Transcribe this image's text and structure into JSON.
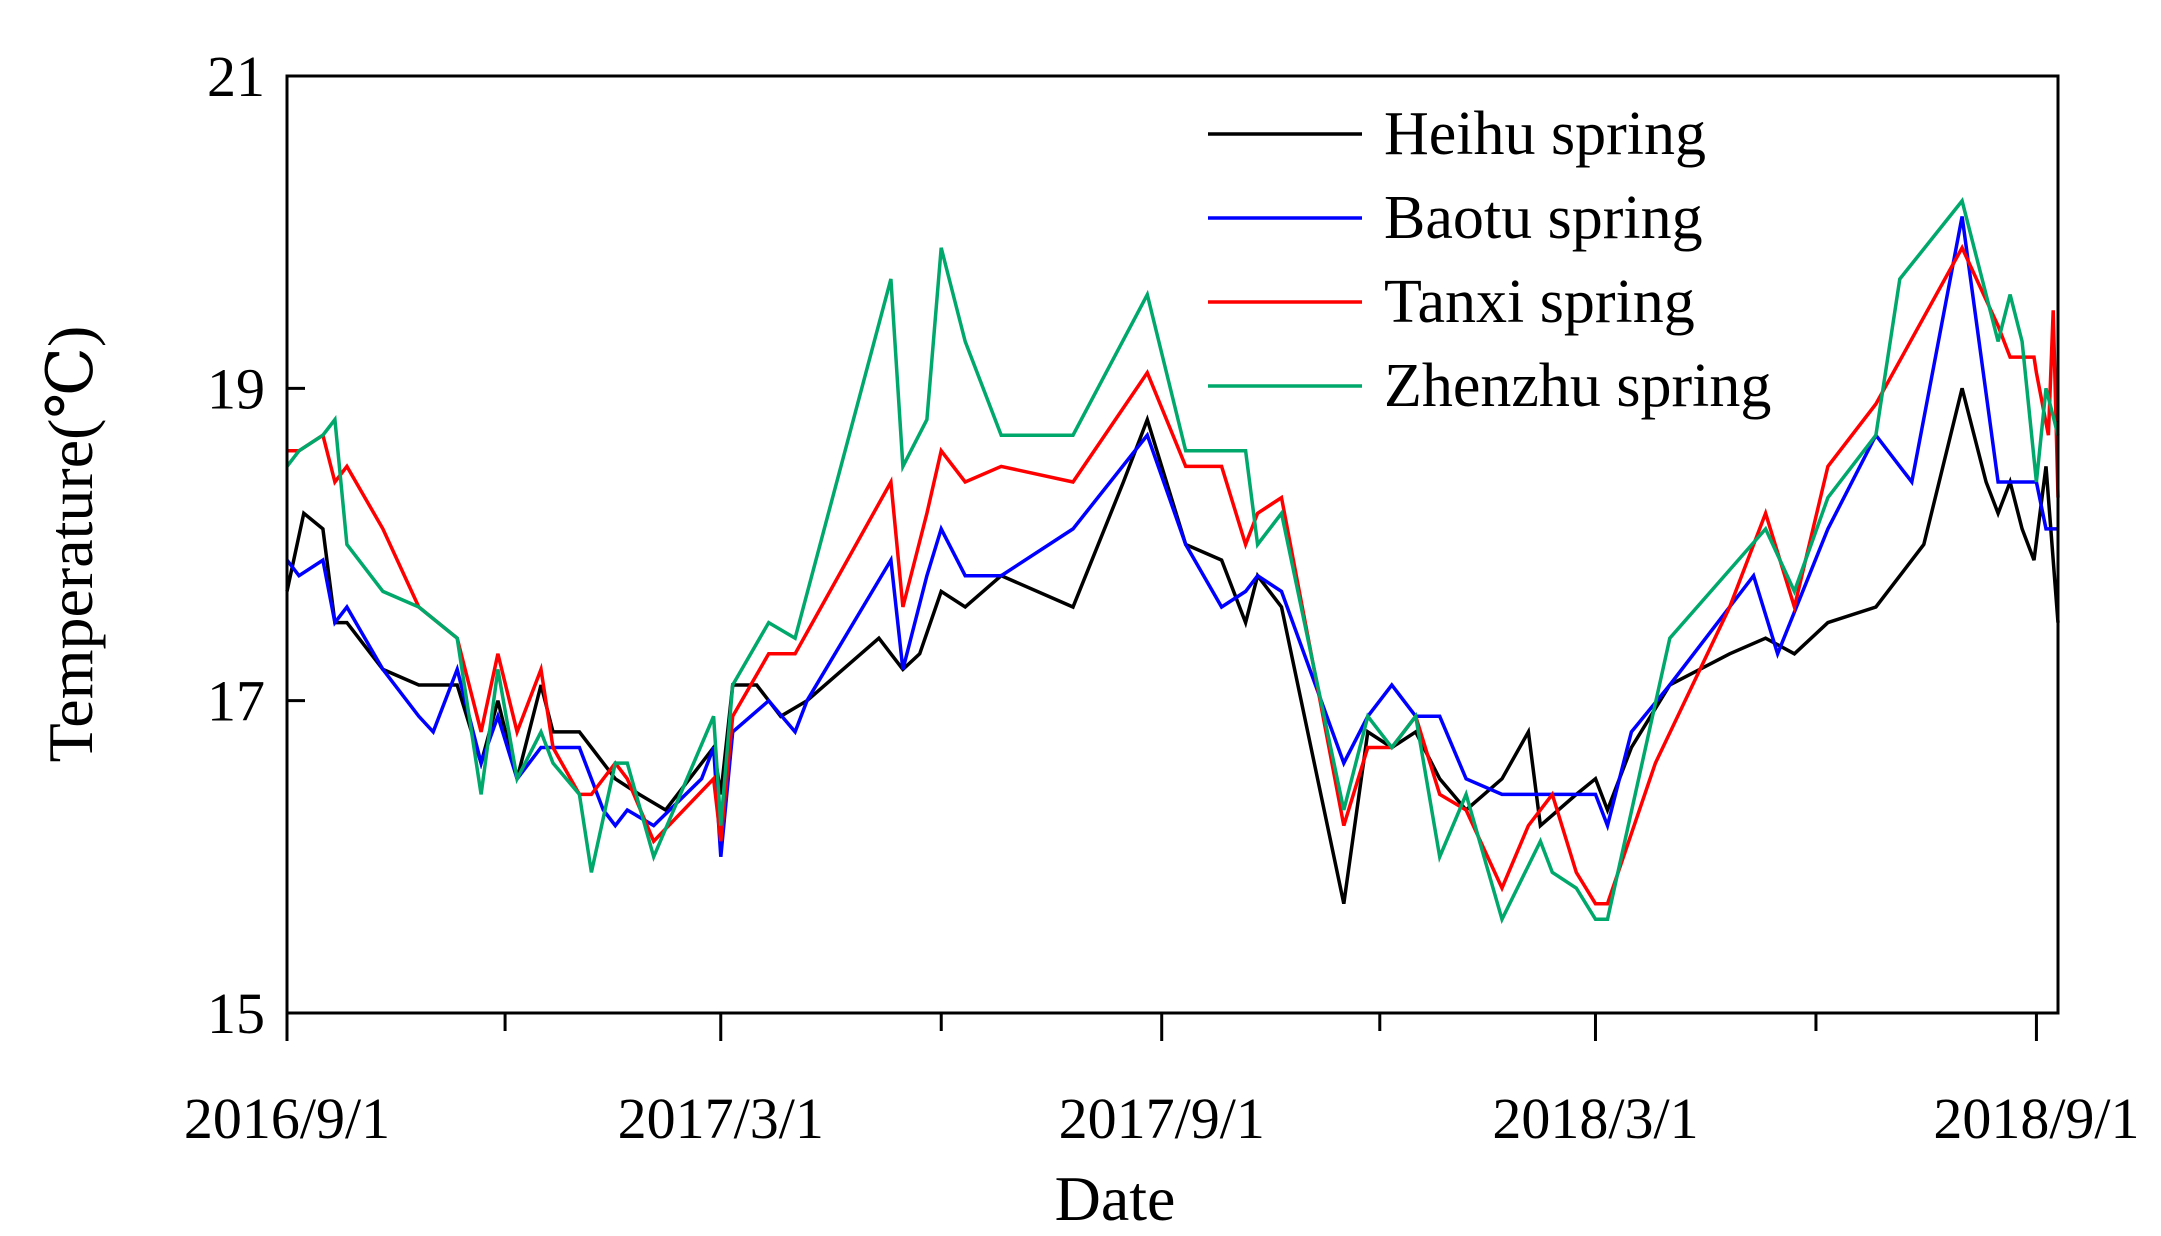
{
  "chart_data": {
    "type": "line",
    "title": "",
    "xlabel": "Date",
    "ylabel": "Temperature(℃)",
    "ylim": [
      15,
      21
    ],
    "xlim": [
      "2016-09-01",
      "2018-09-10"
    ],
    "grid": false,
    "legend_position": "top-right",
    "y_ticks": [
      15,
      17,
      19,
      21
    ],
    "y_tick_labels": [
      "15",
      "17",
      "19",
      "21"
    ],
    "x_major_ticks": [
      "2016-09-01",
      "2017-03-01",
      "2017-09-01",
      "2018-03-01",
      "2018-09-01"
    ],
    "x_tick_labels": [
      "2016/9/1",
      "2017/3/1",
      "2017/9/1",
      "2018/3/1",
      "2018/9/1"
    ],
    "x_minor_ticks": [
      "2016-12-01",
      "2017-06-01",
      "2017-12-01",
      "2018-06-01"
    ],
    "series": [
      {
        "name": "Heihu spring",
        "color": "#000000",
        "points": [
          [
            "2016-09-01",
            17.7
          ],
          [
            "2016-09-08",
            18.2
          ],
          [
            "2016-09-16",
            18.1
          ],
          [
            "2016-09-21",
            17.5
          ],
          [
            "2016-09-26",
            17.5
          ],
          [
            "2016-10-11",
            17.2
          ],
          [
            "2016-10-26",
            17.1
          ],
          [
            "2016-11-11",
            17.1
          ],
          [
            "2016-11-21",
            16.6
          ],
          [
            "2016-11-28",
            17.0
          ],
          [
            "2016-12-06",
            16.5
          ],
          [
            "2016-12-16",
            17.1
          ],
          [
            "2016-12-21",
            16.8
          ],
          [
            "2017-01-01",
            16.8
          ],
          [
            "2017-01-06",
            16.7
          ],
          [
            "2017-01-16",
            16.5
          ],
          [
            "2017-01-26",
            16.4
          ],
          [
            "2017-02-06",
            16.3
          ],
          [
            "2017-02-26",
            16.7
          ],
          [
            "2017-03-01",
            16.4
          ],
          [
            "2017-03-06",
            17.1
          ],
          [
            "2017-03-16",
            17.1
          ],
          [
            "2017-03-26",
            16.9
          ],
          [
            "2017-04-06",
            17.0
          ],
          [
            "2017-05-06",
            17.4
          ],
          [
            "2017-05-16",
            17.2
          ],
          [
            "2017-05-23",
            17.3
          ],
          [
            "2017-06-01",
            17.7
          ],
          [
            "2017-06-11",
            17.6
          ],
          [
            "2017-06-26",
            17.8
          ],
          [
            "2017-07-26",
            17.6
          ],
          [
            "2017-08-16",
            18.4
          ],
          [
            "2017-08-26",
            18.8
          ],
          [
            "2017-09-11",
            18.0
          ],
          [
            "2017-09-26",
            17.9
          ],
          [
            "2017-10-06",
            17.5
          ],
          [
            "2017-10-11",
            17.8
          ],
          [
            "2017-10-21",
            17.6
          ],
          [
            "2017-11-16",
            15.7
          ],
          [
            "2017-11-26",
            16.8
          ],
          [
            "2017-12-06",
            16.7
          ],
          [
            "2017-12-16",
            16.8
          ],
          [
            "2017-12-26",
            16.5
          ],
          [
            "2018-01-06",
            16.3
          ],
          [
            "2018-01-21",
            16.5
          ],
          [
            "2018-02-01",
            16.8
          ],
          [
            "2018-02-06",
            16.2
          ],
          [
            "2018-02-21",
            16.4
          ],
          [
            "2018-03-01",
            16.5
          ],
          [
            "2018-03-06",
            16.3
          ],
          [
            "2018-03-16",
            16.7
          ],
          [
            "2018-04-01",
            17.1
          ],
          [
            "2018-04-26",
            17.3
          ],
          [
            "2018-05-11",
            17.4
          ],
          [
            "2018-05-23",
            17.3
          ],
          [
            "2018-06-06",
            17.5
          ],
          [
            "2018-06-26",
            17.6
          ],
          [
            "2018-07-16",
            18.0
          ],
          [
            "2018-08-01",
            19.0
          ],
          [
            "2018-08-11",
            18.4
          ],
          [
            "2018-08-16",
            18.2
          ],
          [
            "2018-08-21",
            18.4
          ],
          [
            "2018-08-26",
            18.1
          ],
          [
            "2018-08-31",
            17.9
          ],
          [
            "2018-09-05",
            18.5
          ],
          [
            "2018-09-10",
            17.5
          ]
        ]
      },
      {
        "name": "Baotu spring",
        "color": "#0000FF",
        "points": [
          [
            "2016-09-01",
            17.9
          ],
          [
            "2016-09-06",
            17.8
          ],
          [
            "2016-09-16",
            17.9
          ],
          [
            "2016-09-21",
            17.5
          ],
          [
            "2016-09-26",
            17.6
          ],
          [
            "2016-10-11",
            17.2
          ],
          [
            "2016-10-26",
            16.9
          ],
          [
            "2016-11-01",
            16.8
          ],
          [
            "2016-11-11",
            17.2
          ],
          [
            "2016-11-21",
            16.6
          ],
          [
            "2016-11-28",
            16.9
          ],
          [
            "2016-12-06",
            16.5
          ],
          [
            "2016-12-16",
            16.7
          ],
          [
            "2017-01-01",
            16.7
          ],
          [
            "2017-01-11",
            16.3
          ],
          [
            "2017-01-16",
            16.2
          ],
          [
            "2017-01-21",
            16.3
          ],
          [
            "2017-02-01",
            16.2
          ],
          [
            "2017-02-21",
            16.5
          ],
          [
            "2017-02-26",
            16.7
          ],
          [
            "2017-03-01",
            16.0
          ],
          [
            "2017-03-06",
            16.8
          ],
          [
            "2017-03-21",
            17.0
          ],
          [
            "2017-04-01",
            16.8
          ],
          [
            "2017-04-06",
            17.0
          ],
          [
            "2017-05-11",
            17.9
          ],
          [
            "2017-05-16",
            17.2
          ],
          [
            "2017-05-26",
            17.8
          ],
          [
            "2017-06-01",
            18.1
          ],
          [
            "2017-06-11",
            17.8
          ],
          [
            "2017-06-26",
            17.8
          ],
          [
            "2017-07-26",
            18.1
          ],
          [
            "2017-08-26",
            18.7
          ],
          [
            "2017-09-11",
            18.0
          ],
          [
            "2017-09-26",
            17.6
          ],
          [
            "2017-10-06",
            17.7
          ],
          [
            "2017-10-11",
            17.8
          ],
          [
            "2017-10-21",
            17.7
          ],
          [
            "2017-11-16",
            16.6
          ],
          [
            "2017-11-26",
            16.9
          ],
          [
            "2017-12-06",
            17.1
          ],
          [
            "2017-12-16",
            16.9
          ],
          [
            "2017-12-26",
            16.9
          ],
          [
            "2018-01-06",
            16.5
          ],
          [
            "2018-01-21",
            16.4
          ],
          [
            "2018-02-06",
            16.4
          ],
          [
            "2018-02-21",
            16.4
          ],
          [
            "2018-03-01",
            16.4
          ],
          [
            "2018-03-06",
            16.2
          ],
          [
            "2018-03-16",
            16.8
          ],
          [
            "2018-04-01",
            17.1
          ],
          [
            "2018-05-06",
            17.8
          ],
          [
            "2018-05-16",
            17.3
          ],
          [
            "2018-06-06",
            18.1
          ],
          [
            "2018-06-26",
            18.7
          ],
          [
            "2018-07-11",
            18.4
          ],
          [
            "2018-08-01",
            20.1
          ],
          [
            "2018-08-16",
            18.4
          ],
          [
            "2018-08-26",
            18.4
          ],
          [
            "2018-09-01",
            18.4
          ],
          [
            "2018-09-05",
            18.1
          ],
          [
            "2018-09-10",
            18.1
          ]
        ]
      },
      {
        "name": "Tanxi spring",
        "color": "#FF0000",
        "points": [
          [
            "2016-09-01",
            18.6
          ],
          [
            "2016-09-06",
            18.6
          ],
          [
            "2016-09-16",
            18.7
          ],
          [
            "2016-09-21",
            18.4
          ],
          [
            "2016-09-26",
            18.5
          ],
          [
            "2016-10-11",
            18.1
          ],
          [
            "2016-10-26",
            17.6
          ],
          [
            "2016-11-11",
            17.4
          ],
          [
            "2016-11-21",
            16.8
          ],
          [
            "2016-11-28",
            17.3
          ],
          [
            "2016-12-06",
            16.8
          ],
          [
            "2016-12-16",
            17.2
          ],
          [
            "2016-12-21",
            16.7
          ],
          [
            "2017-01-01",
            16.4
          ],
          [
            "2017-01-06",
            16.4
          ],
          [
            "2017-01-16",
            16.6
          ],
          [
            "2017-01-21",
            16.5
          ],
          [
            "2017-02-01",
            16.1
          ],
          [
            "2017-02-26",
            16.5
          ],
          [
            "2017-03-01",
            16.1
          ],
          [
            "2017-03-06",
            16.9
          ],
          [
            "2017-03-21",
            17.3
          ],
          [
            "2017-04-01",
            17.3
          ],
          [
            "2017-05-11",
            18.4
          ],
          [
            "2017-05-16",
            17.6
          ],
          [
            "2017-05-26",
            18.2
          ],
          [
            "2017-06-01",
            18.6
          ],
          [
            "2017-06-11",
            18.4
          ],
          [
            "2017-06-26",
            18.5
          ],
          [
            "2017-07-26",
            18.4
          ],
          [
            "2017-08-26",
            19.1
          ],
          [
            "2017-09-11",
            18.5
          ],
          [
            "2017-09-26",
            18.5
          ],
          [
            "2017-10-06",
            18.0
          ],
          [
            "2017-10-11",
            18.2
          ],
          [
            "2017-10-21",
            18.3
          ],
          [
            "2017-11-16",
            16.2
          ],
          [
            "2017-11-26",
            16.7
          ],
          [
            "2017-12-06",
            16.7
          ],
          [
            "2017-12-16",
            16.9
          ],
          [
            "2017-12-26",
            16.4
          ],
          [
            "2018-01-06",
            16.3
          ],
          [
            "2018-01-21",
            15.8
          ],
          [
            "2018-02-01",
            16.2
          ],
          [
            "2018-02-11",
            16.4
          ],
          [
            "2018-02-21",
            15.9
          ],
          [
            "2018-03-01",
            15.7
          ],
          [
            "2018-03-06",
            15.7
          ],
          [
            "2018-03-26",
            16.6
          ],
          [
            "2018-04-26",
            17.6
          ],
          [
            "2018-05-11",
            18.2
          ],
          [
            "2018-05-23",
            17.6
          ],
          [
            "2018-06-06",
            18.5
          ],
          [
            "2018-06-26",
            18.9
          ],
          [
            "2018-08-01",
            19.9
          ],
          [
            "2018-08-16",
            19.4
          ],
          [
            "2018-08-21",
            19.2
          ],
          [
            "2018-08-31",
            19.2
          ],
          [
            "2018-09-01",
            19.1
          ],
          [
            "2018-09-06",
            18.7
          ],
          [
            "2018-09-08",
            19.5
          ],
          [
            "2018-09-10",
            18.3
          ]
        ]
      },
      {
        "name": "Zhenzhu spring",
        "color": "#00A86B",
        "points": [
          [
            "2016-09-01",
            18.5
          ],
          [
            "2016-09-06",
            18.6
          ],
          [
            "2016-09-16",
            18.7
          ],
          [
            "2016-09-21",
            18.8
          ],
          [
            "2016-09-26",
            18.0
          ],
          [
            "2016-10-11",
            17.7
          ],
          [
            "2016-10-26",
            17.6
          ],
          [
            "2016-11-11",
            17.4
          ],
          [
            "2016-11-21",
            16.4
          ],
          [
            "2016-11-28",
            17.2
          ],
          [
            "2016-12-06",
            16.5
          ],
          [
            "2016-12-16",
            16.8
          ],
          [
            "2016-12-21",
            16.6
          ],
          [
            "2017-01-01",
            16.4
          ],
          [
            "2017-01-06",
            15.9
          ],
          [
            "2017-01-16",
            16.6
          ],
          [
            "2017-01-21",
            16.6
          ],
          [
            "2017-02-01",
            16.0
          ],
          [
            "2017-02-26",
            16.9
          ],
          [
            "2017-03-01",
            16.2
          ],
          [
            "2017-03-06",
            17.1
          ],
          [
            "2017-03-21",
            17.5
          ],
          [
            "2017-04-01",
            17.4
          ],
          [
            "2017-05-11",
            19.7
          ],
          [
            "2017-05-16",
            18.5
          ],
          [
            "2017-05-26",
            18.8
          ],
          [
            "2017-06-01",
            19.9
          ],
          [
            "2017-06-11",
            19.3
          ],
          [
            "2017-06-26",
            18.7
          ],
          [
            "2017-07-26",
            18.7
          ],
          [
            "2017-08-26",
            19.6
          ],
          [
            "2017-09-11",
            18.6
          ],
          [
            "2017-09-26",
            18.6
          ],
          [
            "2017-10-06",
            18.6
          ],
          [
            "2017-10-11",
            18.0
          ],
          [
            "2017-10-21",
            18.2
          ],
          [
            "2017-11-16",
            16.3
          ],
          [
            "2017-11-26",
            16.9
          ],
          [
            "2017-12-06",
            16.7
          ],
          [
            "2017-12-16",
            16.9
          ],
          [
            "2017-12-26",
            16.0
          ],
          [
            "2018-01-06",
            16.4
          ],
          [
            "2018-01-21",
            15.6
          ],
          [
            "2018-02-06",
            16.1
          ],
          [
            "2018-02-11",
            15.9
          ],
          [
            "2018-02-21",
            15.8
          ],
          [
            "2018-03-01",
            15.6
          ],
          [
            "2018-03-06",
            15.6
          ],
          [
            "2018-04-01",
            17.4
          ],
          [
            "2018-05-11",
            18.1
          ],
          [
            "2018-05-23",
            17.7
          ],
          [
            "2018-06-06",
            18.3
          ],
          [
            "2018-06-26",
            18.7
          ],
          [
            "2018-07-06",
            19.7
          ],
          [
            "2018-08-01",
            20.2
          ],
          [
            "2018-08-16",
            19.3
          ],
          [
            "2018-08-21",
            19.6
          ],
          [
            "2018-08-26",
            19.3
          ],
          [
            "2018-09-01",
            18.4
          ],
          [
            "2018-09-05",
            19.0
          ],
          [
            "2018-09-10",
            18.7
          ]
        ]
      }
    ]
  }
}
